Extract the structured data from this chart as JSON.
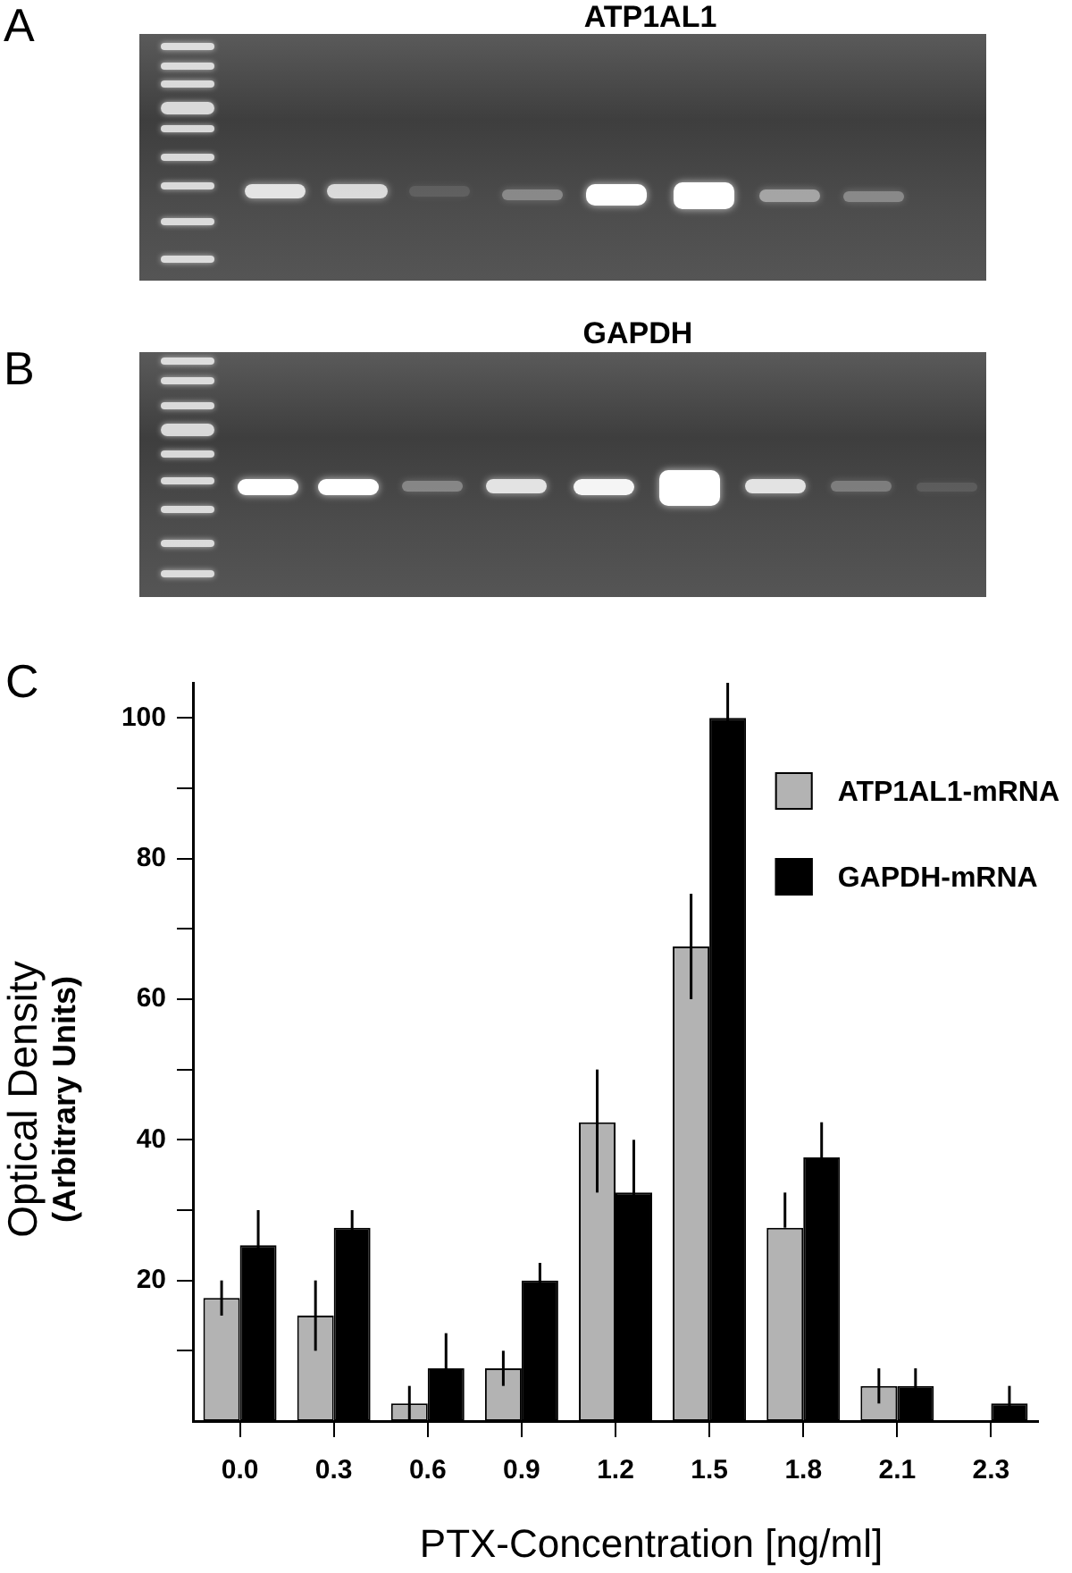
{
  "chart_data": [
    {
      "type": "other",
      "title": "ATP1AL1",
      "annotations": [
        "A"
      ]
    },
    {
      "type": "other",
      "title": "GAPDH",
      "annotations": [
        "B"
      ]
    },
    {
      "type": "bar",
      "annotations": [
        "C"
      ],
      "categories": [
        "0.0",
        "0.3",
        "0.6",
        "0.9",
        "1.2",
        "1.5",
        "1.8",
        "2.1",
        "2.3"
      ],
      "xlabel": "PTX-Concentration [ng/ml]",
      "ylabel": "Optical Density\n(Arbitrary Units)",
      "series": [
        {
          "name": "ATP1AL1-mRNA",
          "color": "#b3b3b3",
          "values": [
            17.5,
            15,
            2.5,
            7.5,
            42.5,
            67.5,
            27.5,
            5,
            null
          ],
          "errors": [
            2.5,
            5,
            2.5,
            2.5,
            [
              32.5,
              50
            ],
            7.5,
            [
              27.5,
              32.5
            ],
            2.5,
            null
          ]
        },
        {
          "name": "GAPDH-mRNA",
          "color": "#000000",
          "values": [
            25,
            27.5,
            7.5,
            20,
            32.5,
            100,
            37.5,
            5,
            2.5
          ],
          "errors": [
            5,
            2.5,
            5,
            2.5,
            7.5,
            5,
            5,
            2.5,
            2.5
          ]
        }
      ],
      "ylim": [
        0,
        105
      ],
      "yticks": [
        {
          "value": 10,
          "label": null
        },
        20,
        {
          "value": 30,
          "label": null
        },
        40,
        {
          "value": 50,
          "label": null
        },
        60,
        {
          "value": 70,
          "label": null
        },
        80,
        {
          "value": 90,
          "label": null
        },
        100
      ],
      "legend": "top right"
    }
  ]
}
